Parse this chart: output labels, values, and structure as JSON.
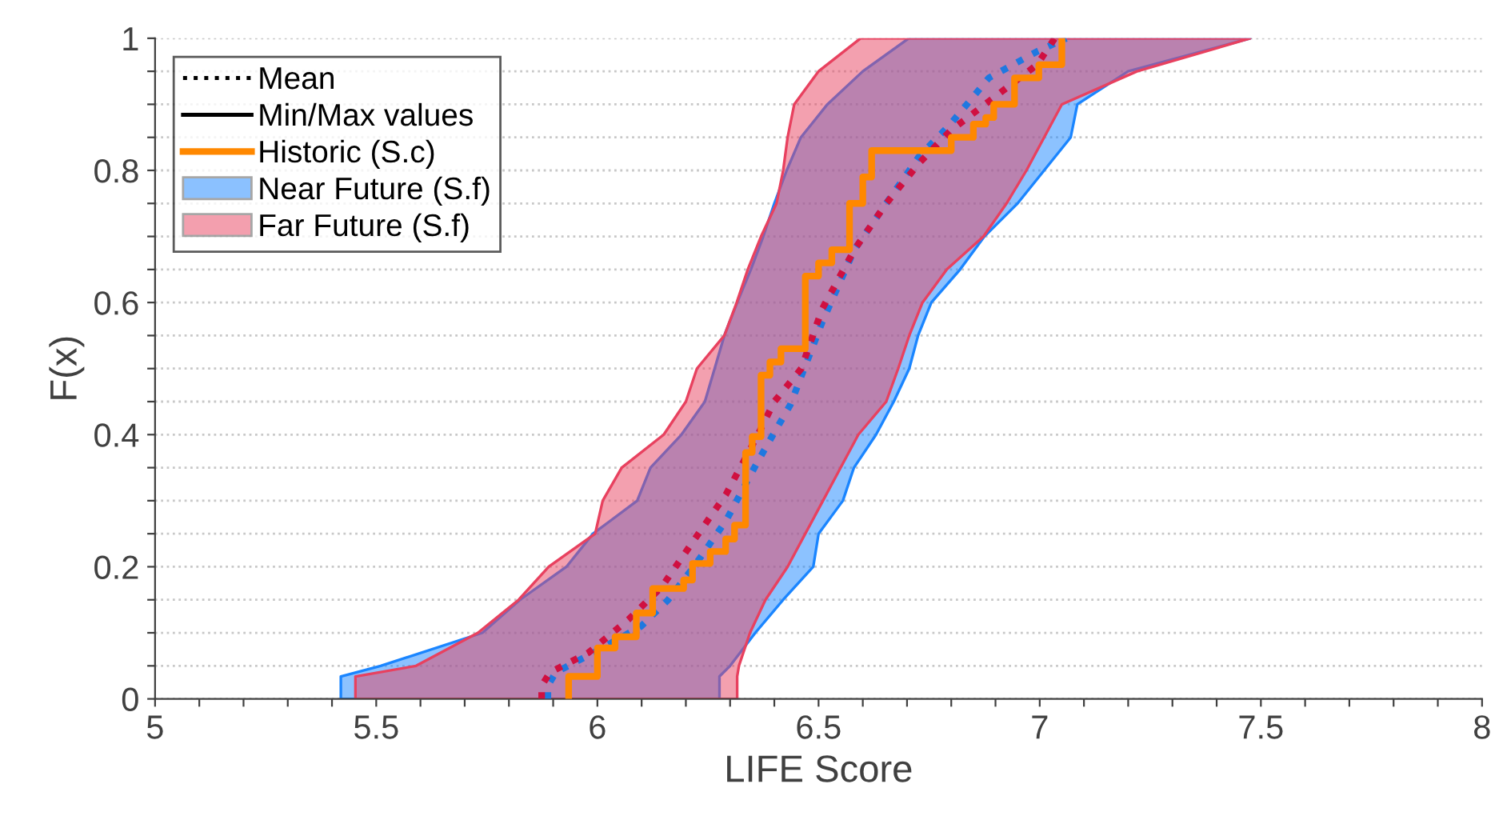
{
  "chart_data": {
    "type": "line",
    "xlabel": "LIFE Score",
    "ylabel": "F(x)",
    "xlim": [
      5,
      8
    ],
    "ylim": [
      0,
      1
    ],
    "xticks": [
      5,
      {
        "value": 5.1,
        "label": null
      },
      {
        "value": 5.2,
        "label": null
      },
      {
        "value": 5.3,
        "label": null
      },
      {
        "value": 5.4,
        "label": null
      },
      5.5,
      {
        "value": 5.6,
        "label": null
      },
      {
        "value": 5.7,
        "label": null
      },
      {
        "value": 5.8,
        "label": null
      },
      {
        "value": 5.9,
        "label": null
      },
      6,
      {
        "value": 6.1,
        "label": null
      },
      {
        "value": 6.2,
        "label": null
      },
      {
        "value": 6.3,
        "label": null
      },
      {
        "value": 6.4,
        "label": null
      },
      6.5,
      {
        "value": 6.6,
        "label": null
      },
      {
        "value": 6.7,
        "label": null
      },
      {
        "value": 6.8,
        "label": null
      },
      {
        "value": 6.9,
        "label": null
      },
      7,
      {
        "value": 7.1,
        "label": null
      },
      {
        "value": 7.2,
        "label": null
      },
      {
        "value": 7.3,
        "label": null
      },
      {
        "value": 7.4,
        "label": null
      },
      7.5,
      {
        "value": 7.6,
        "label": null
      },
      {
        "value": 7.7,
        "label": null
      },
      {
        "value": 7.8,
        "label": null
      },
      {
        "value": 7.9,
        "label": null
      },
      8
    ],
    "yticks": [
      0,
      {
        "value": 0.05,
        "label": null
      },
      {
        "value": 0.1,
        "label": null
      },
      {
        "value": 0.15,
        "label": null
      },
      0.2,
      {
        "value": 0.25,
        "label": null
      },
      {
        "value": 0.3,
        "label": null
      },
      {
        "value": 0.35,
        "label": null
      },
      0.4,
      {
        "value": 0.45,
        "label": null
      },
      {
        "value": 0.5,
        "label": null
      },
      {
        "value": 0.55,
        "label": null
      },
      0.6,
      {
        "value": 0.65,
        "label": null
      },
      {
        "value": 0.7,
        "label": null
      },
      {
        "value": 0.75,
        "label": null
      },
      0.8,
      {
        "value": 0.85,
        "label": null
      },
      {
        "value": 0.9,
        "label": null
      },
      {
        "value": 0.95,
        "label": null
      },
      1
    ],
    "grid": "y",
    "legend": "top left",
    "series": [
      {
        "name": "Mean",
        "line_style": "dotted",
        "color": "#000000"
      },
      {
        "name": "Min/Max values",
        "line_style": "solid",
        "color": "#000000"
      },
      {
        "name": "Historic (S.c)",
        "type": "step",
        "color": "#ff8800",
        "x": [
          5.935,
          5.935,
          6.0,
          6.04,
          6.088,
          6.125,
          6.195,
          6.215,
          6.255,
          6.29,
          6.31,
          6.335,
          6.35,
          6.37,
          6.39,
          6.415,
          6.47,
          6.5,
          6.53,
          6.57,
          6.6,
          6.62,
          6.8,
          6.85,
          6.878,
          6.896,
          6.943,
          6.998,
          7.05
        ],
        "values": [
          0,
          0.034,
          0.077,
          0.094,
          0.13,
          0.167,
          0.18,
          0.205,
          0.223,
          0.242,
          0.263,
          0.373,
          0.397,
          0.49,
          0.51,
          0.53,
          0.64,
          0.66,
          0.68,
          0.75,
          0.79,
          0.83,
          0.85,
          0.87,
          0.88,
          0.9,
          0.94,
          0.96,
          1.0
        ]
      },
      {
        "name": "Near Future (S.f)",
        "type": "area",
        "color": "#1a85ff",
        "x": [
          5.42,
          5.42,
          5.51,
          5.74,
          5.825,
          5.93,
          5.99,
          6.09,
          6.12,
          6.19,
          6.243,
          6.265,
          6.287,
          6.316,
          6.347,
          6.375,
          6.4,
          6.428,
          6.46,
          6.52,
          6.6,
          6.704,
          7.476,
          7.2,
          7.085,
          7.07,
          7.01,
          6.95,
          6.875,
          6.82,
          6.755,
          6.725,
          6.705,
          6.67,
          6.63,
          6.58,
          6.555,
          6.5,
          6.488,
          6.42,
          6.357,
          6.3,
          6.276,
          6.276
        ],
        "values": [
          0,
          0.034,
          0.05,
          0.1,
          0.15,
          0.2,
          0.25,
          0.3,
          0.35,
          0.4,
          0.45,
          0.5,
          0.55,
          0.6,
          0.65,
          0.7,
          0.75,
          0.8,
          0.85,
          0.9,
          0.95,
          1.0,
          1.0,
          0.95,
          0.9,
          0.85,
          0.8,
          0.75,
          0.7,
          0.65,
          0.6,
          0.55,
          0.5,
          0.45,
          0.4,
          0.35,
          0.3,
          0.25,
          0.2,
          0.15,
          0.1,
          0.05,
          0.034,
          0
        ]
      },
      {
        "name": "Far Future (S.f)",
        "type": "area",
        "color": "#e8415f",
        "x": [
          5.453,
          5.453,
          5.59,
          5.73,
          5.822,
          5.89,
          5.995,
          6.012,
          6.055,
          6.15,
          6.2,
          6.225,
          6.287,
          6.315,
          6.34,
          6.37,
          6.405,
          6.42,
          6.43,
          6.445,
          6.5,
          6.595,
          7.476,
          7.22,
          7.05,
          7.01,
          6.97,
          6.925,
          6.873,
          6.79,
          6.735,
          6.705,
          6.68,
          6.653,
          6.59,
          6.55,
          6.51,
          6.47,
          6.43,
          6.38,
          6.345,
          6.32,
          6.316,
          6.316
        ],
        "values": [
          0,
          0.034,
          0.05,
          0.1,
          0.15,
          0.2,
          0.25,
          0.3,
          0.35,
          0.4,
          0.45,
          0.5,
          0.55,
          0.6,
          0.65,
          0.7,
          0.75,
          0.8,
          0.85,
          0.9,
          0.95,
          1.0,
          1.0,
          0.95,
          0.9,
          0.85,
          0.8,
          0.75,
          0.7,
          0.65,
          0.6,
          0.55,
          0.5,
          0.45,
          0.4,
          0.35,
          0.3,
          0.25,
          0.2,
          0.15,
          0.1,
          0.05,
          0.034,
          0
        ]
      },
      {
        "line_style": "dotted",
        "color": "#1f78e0",
        "x": [
          5.888,
          5.888,
          5.906,
          6.0,
          6.099,
          6.16,
          6.218,
          6.291,
          6.363,
          6.436,
          6.508,
          6.581,
          6.653,
          6.726,
          6.798,
          6.885,
          6.994,
          7.06
        ],
        "values": [
          0,
          0.02,
          0.04,
          0.073,
          0.11,
          0.15,
          0.2,
          0.27,
          0.36,
          0.445,
          0.57,
          0.68,
          0.75,
          0.82,
          0.87,
          0.94,
          0.98,
          1.0
        ]
      },
      {
        "line_style": "dotted",
        "color": "#d01040",
        "x": [
          5.874,
          5.874,
          5.893,
          5.98,
          6.07,
          6.146,
          6.218,
          6.291,
          6.363,
          6.4,
          6.461,
          6.508,
          6.581,
          6.653,
          6.726,
          6.798,
          6.896,
          6.994,
          7.034
        ],
        "values": [
          0,
          0.02,
          0.04,
          0.07,
          0.12,
          0.17,
          0.24,
          0.31,
          0.4,
          0.45,
          0.5,
          0.59,
          0.68,
          0.75,
          0.81,
          0.86,
          0.91,
          0.96,
          1.0
        ]
      }
    ]
  }
}
